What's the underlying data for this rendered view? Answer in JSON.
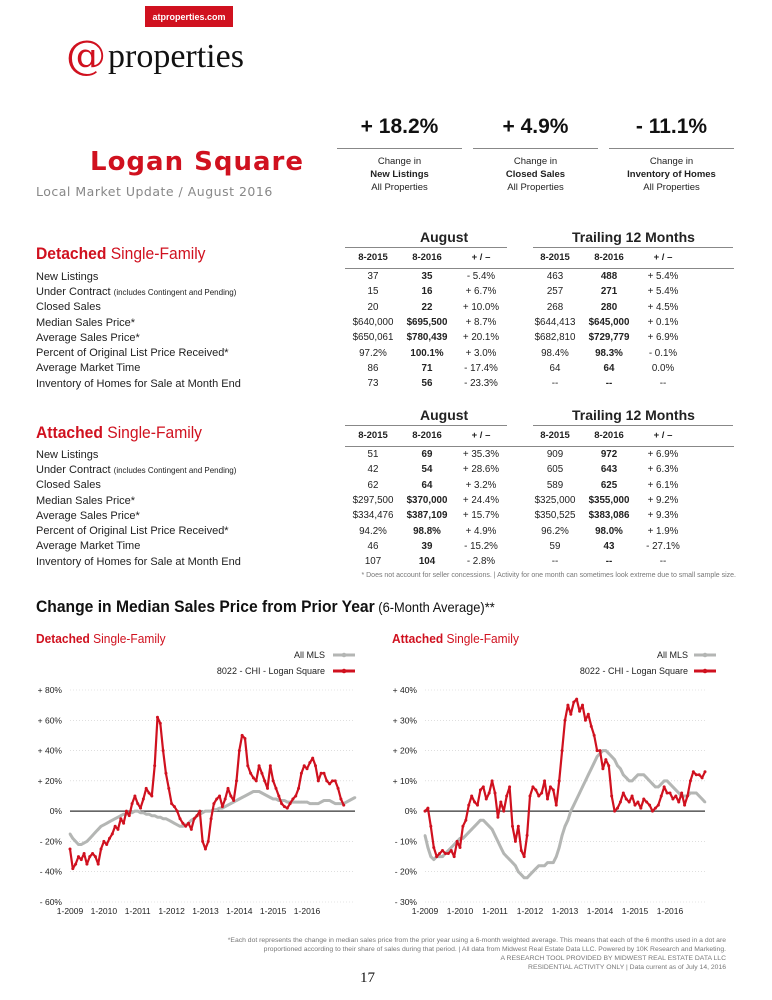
{
  "header": {
    "url_badge": "atproperties.com",
    "logo_at": "@",
    "logo_text": "properties",
    "area_title": "Logan Square",
    "area_subtitle": "Local Market Update / August 2016"
  },
  "summary_stats": [
    {
      "value": "+ 18.2%",
      "line1": "Change in",
      "line2": "New Listings",
      "line3": "All Properties"
    },
    {
      "value": "+ 4.9%",
      "line1": "Change in",
      "line2": "Closed Sales",
      "line3": "All Properties"
    },
    {
      "value": "- 11.1%",
      "line1": "Change in",
      "line2": "Inventory of Homes",
      "line3": "All Properties"
    }
  ],
  "column_headers": {
    "group1": "August",
    "group2": "Trailing 12 Months",
    "cols": [
      "8-2015",
      "8-2016",
      "+ / –",
      "8-2015",
      "8-2016",
      "+ / –"
    ]
  },
  "row_labels": [
    "New Listings",
    "Under Contract",
    "Closed Sales",
    "Median Sales Price*",
    "Average Sales Price*",
    "Percent of Original List Price Received*",
    "Average Market Time",
    "Inventory of Homes for Sale at Month End"
  ],
  "row_label_note": "(includes Contingent and Pending)",
  "detached": {
    "title_bold": "Detached",
    "title_rest": " Single-Family",
    "rows": [
      [
        "37",
        "35",
        "- 5.4%",
        "463",
        "488",
        "+ 5.4%"
      ],
      [
        "15",
        "16",
        "+ 6.7%",
        "257",
        "271",
        "+ 5.4%"
      ],
      [
        "20",
        "22",
        "+ 10.0%",
        "268",
        "280",
        "+ 4.5%"
      ],
      [
        "$640,000",
        "$695,500",
        "+ 8.7%",
        "$644,413",
        "$645,000",
        "+ 0.1%"
      ],
      [
        "$650,061",
        "$780,439",
        "+ 20.1%",
        "$682,810",
        "$729,779",
        "+ 6.9%"
      ],
      [
        "97.2%",
        "100.1%",
        "+ 3.0%",
        "98.4%",
        "98.3%",
        "- 0.1%"
      ],
      [
        "86",
        "71",
        "- 17.4%",
        "64",
        "64",
        "0.0%"
      ],
      [
        "73",
        "56",
        "- 23.3%",
        "--",
        "--",
        "--"
      ]
    ]
  },
  "attached": {
    "title_bold": "Attached",
    "title_rest": " Single-Family",
    "rows": [
      [
        "51",
        "69",
        "+ 35.3%",
        "909",
        "972",
        "+ 6.9%"
      ],
      [
        "42",
        "54",
        "+ 28.6%",
        "605",
        "643",
        "+ 6.3%"
      ],
      [
        "62",
        "64",
        "+ 3.2%",
        "589",
        "625",
        "+ 6.1%"
      ],
      [
        "$297,500",
        "$370,000",
        "+ 24.4%",
        "$325,000",
        "$355,000",
        "+ 9.2%"
      ],
      [
        "$334,476",
        "$387,109",
        "+ 15.7%",
        "$350,525",
        "$383,086",
        "+ 9.3%"
      ],
      [
        "94.2%",
        "98.8%",
        "+ 4.9%",
        "96.2%",
        "98.0%",
        "+ 1.9%"
      ],
      [
        "46",
        "39",
        "- 15.2%",
        "59",
        "43",
        "- 27.1%"
      ],
      [
        "107",
        "104",
        "- 2.8%",
        "--",
        "--",
        "--"
      ]
    ]
  },
  "footnote1": "* Does not account for seller concessions.  |  Activity for one month can sometimes look extreme due to small sample size.",
  "change_title": "Change in Median Sales Price from Prior Year",
  "change_title_suffix": " (6-Month Average)**",
  "colors": {
    "brand_red": "#d0111f",
    "all_mls_gray": "#b4b6b4",
    "local_red": "#d0111f"
  },
  "chart_data": [
    {
      "type": "line",
      "title_bold": "Detached",
      "title_rest": " Single-Family",
      "ylim": [
        -60,
        80
      ],
      "yticks": [
        "- 60%",
        "- 40%",
        "- 20%",
        "0%",
        "+ 20%",
        "+ 40%",
        "+ 60%",
        "+ 80%"
      ],
      "ytick_values": [
        -60,
        -40,
        -20,
        0,
        20,
        40,
        60,
        80
      ],
      "xticks": [
        "1-2009",
        "1-2010",
        "1-2011",
        "1-2012",
        "1-2013",
        "1-2014",
        "1-2015",
        "1-2016"
      ],
      "x_start": "2009-01",
      "x_end": "2016-08",
      "series": [
        {
          "name": "All MLS",
          "color": "#b4b6b4",
          "values": [
            -15,
            -18,
            -20,
            -22,
            -22,
            -21,
            -20,
            -18,
            -16,
            -14,
            -12,
            -10,
            -9,
            -8,
            -7,
            -6,
            -5,
            -4,
            -3,
            -2,
            -2,
            -1,
            -1,
            0,
            0,
            -1,
            -1,
            -2,
            -2,
            -3,
            -3,
            -4,
            -4,
            -5,
            -5,
            -6,
            -7,
            -8,
            -9,
            -10,
            -10,
            -9,
            -8,
            -6,
            -5,
            -3,
            -2,
            -1,
            0,
            0,
            0,
            1,
            1,
            2,
            2,
            3,
            4,
            5,
            6,
            7,
            8,
            9,
            10,
            11,
            12,
            13,
            13,
            13,
            12,
            11,
            10,
            9,
            8,
            8,
            7,
            7,
            7,
            6,
            6,
            6,
            6,
            6,
            6,
            6,
            6,
            5,
            5,
            5,
            5,
            6,
            7,
            7,
            7,
            6,
            5,
            5,
            5,
            5,
            6,
            7,
            8,
            9
          ]
        },
        {
          "name": "8022 - CHI - Logan Square",
          "color": "#d0111f",
          "values": [
            -25,
            -38,
            -35,
            -30,
            -32,
            -28,
            -35,
            -30,
            -28,
            -30,
            -35,
            -25,
            -20,
            -22,
            -18,
            -15,
            -10,
            -12,
            -5,
            -8,
            0,
            -3,
            5,
            10,
            5,
            2,
            8,
            15,
            12,
            10,
            30,
            62,
            58,
            40,
            25,
            15,
            5,
            3,
            0,
            -5,
            -8,
            -10,
            -8,
            -12,
            -5,
            -3,
            0,
            -20,
            -25,
            -20,
            -5,
            5,
            8,
            10,
            3,
            8,
            15,
            10,
            7,
            20,
            40,
            50,
            48,
            30,
            25,
            22,
            20,
            30,
            25,
            20,
            15,
            30,
            20,
            15,
            10,
            5,
            3,
            2,
            5,
            8,
            10,
            15,
            25,
            30,
            28,
            32,
            35,
            30,
            20,
            25,
            25,
            20,
            18,
            20,
            20,
            15,
            8,
            4
          ]
        }
      ]
    },
    {
      "type": "line",
      "title_bold": "Attached",
      "title_rest": " Single-Family",
      "ylim": [
        -30,
        40
      ],
      "yticks": [
        "- 30%",
        "- 20%",
        "- 10%",
        "0%",
        "+ 10%",
        "+ 20%",
        "+ 30%",
        "+ 40%"
      ],
      "ytick_values": [
        -30,
        -20,
        -10,
        0,
        10,
        20,
        30,
        40
      ],
      "xticks": [
        "1-2009",
        "1-2010",
        "1-2011",
        "1-2012",
        "1-2013",
        "1-2014",
        "1-2015",
        "1-2016"
      ],
      "x_start": "2009-01",
      "x_end": "2016-08",
      "series": [
        {
          "name": "All MLS",
          "color": "#b4b6b4",
          "values": [
            -8,
            -12,
            -15,
            -16,
            -15,
            -15,
            -15,
            -14,
            -13,
            -12,
            -11,
            -10,
            -9,
            -9,
            -8,
            -7,
            -6,
            -5,
            -4,
            -3,
            -3,
            -4,
            -5,
            -6,
            -8,
            -10,
            -12,
            -14,
            -15,
            -16,
            -17,
            -18,
            -20,
            -21,
            -22,
            -22,
            -21,
            -20,
            -19,
            -18,
            -18,
            -18,
            -17,
            -17,
            -17,
            -15,
            -12,
            -8,
            -5,
            -3,
            0,
            2,
            4,
            6,
            8,
            10,
            12,
            14,
            16,
            18,
            19,
            20,
            20,
            19,
            18,
            17,
            15,
            14,
            12,
            11,
            10,
            10,
            11,
            12,
            12,
            12,
            11,
            10,
            9,
            8,
            8,
            9,
            10,
            10,
            9,
            8,
            7,
            6,
            5,
            5,
            5,
            6,
            6,
            6,
            5,
            4,
            3
          ]
        },
        {
          "name": "8022 - CHI - Logan Square",
          "color": "#d0111f",
          "values": [
            0,
            1,
            -5,
            -12,
            -15,
            -14,
            -13,
            -14,
            -14,
            -13,
            -15,
            -10,
            -12,
            -5,
            -3,
            2,
            5,
            3,
            2,
            7,
            8,
            4,
            6,
            10,
            6,
            -2,
            3,
            0,
            5,
            8,
            -5,
            -10,
            -5,
            -13,
            -15,
            -8,
            5,
            8,
            7,
            5,
            6,
            10,
            4,
            8,
            7,
            2,
            10,
            20,
            30,
            35,
            32,
            36,
            37,
            33,
            35,
            30,
            32,
            28,
            25,
            20,
            20,
            14,
            17,
            15,
            5,
            0,
            1,
            3,
            6,
            4,
            3,
            5,
            2,
            3,
            1,
            4,
            3,
            2,
            0,
            1,
            2,
            5,
            8,
            6,
            6,
            4,
            5,
            3,
            6,
            2,
            5,
            10,
            13,
            12,
            12,
            11,
            13
          ]
        }
      ]
    }
  ],
  "footnote2_line1": "*Each dot represents the change in median sales price from the prior year using a 6-month weighted average. This means that each of the 6 months used in a dot are",
  "footnote2_line2": "proportioned according to their share of sales during that period.  |  All data from Midwest Real Estate Data LLC. Powered by 10K Research and Marketing.",
  "footnote2_line3": "A RESEARCH TOOL PROVIDED BY MIDWEST REAL ESTATE DATA LLC",
  "footnote2_line4": "RESIDENTIAL ACTIVITY ONLY  |  Data current as of July 14, 2016",
  "page_number": "17"
}
